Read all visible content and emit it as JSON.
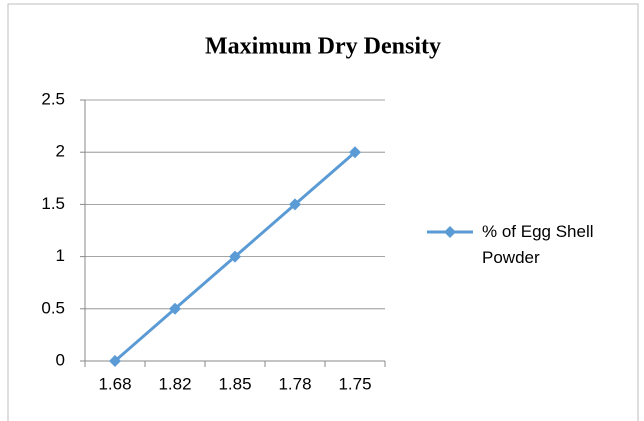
{
  "chart_data": {
    "type": "line",
    "title": "Maximum Dry Density",
    "categories": [
      "1.68",
      "1.82",
      "1.85",
      "1.78",
      "1.75"
    ],
    "series": [
      {
        "name": "% of Egg Shell Powder",
        "color": "#5b9bd5",
        "values": [
          0,
          0.5,
          1,
          1.5,
          2
        ]
      }
    ],
    "ylim": [
      0,
      2.5
    ],
    "yticks": [
      0,
      0.5,
      1,
      1.5,
      2,
      2.5
    ],
    "grid": true,
    "legend": "right"
  }
}
